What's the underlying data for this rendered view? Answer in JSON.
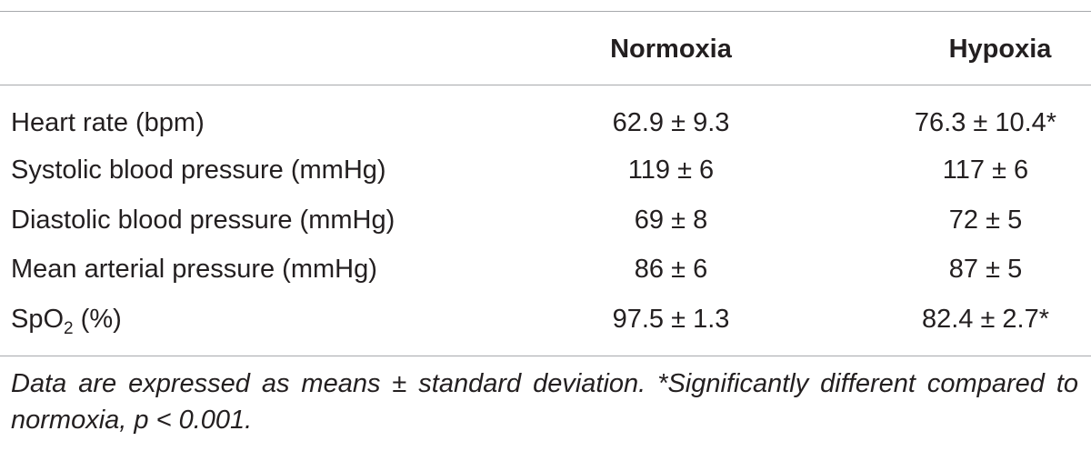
{
  "table": {
    "headers": {
      "parameter": "",
      "normoxia": "Normoxia",
      "hypoxia": "Hypoxia"
    },
    "rows": [
      {
        "label": "Heart rate (bpm)",
        "normoxia": "62.9 ± 9.3",
        "hypoxia": "76.3 ± 10.4*"
      },
      {
        "label": "Systolic blood pressure (mmHg)",
        "normoxia": "119 ± 6",
        "hypoxia": "117 ± 6"
      },
      {
        "label": "Diastolic blood pressure (mmHg)",
        "normoxia": "69 ± 8",
        "hypoxia": "72 ± 5"
      },
      {
        "label": "Mean arterial pressure (mmHg)",
        "normoxia": "86 ± 6",
        "hypoxia": "87 ± 5"
      },
      {
        "label_main": "SpO",
        "label_sub": "2",
        "label_suffix": " (%)",
        "normoxia": "97.5 ± 1.3",
        "hypoxia": "82.4 ± 2.7*"
      }
    ],
    "footnote": "Data are expressed as means ± standard deviation. *Significantly different compared to normoxia, p < 0.001."
  }
}
